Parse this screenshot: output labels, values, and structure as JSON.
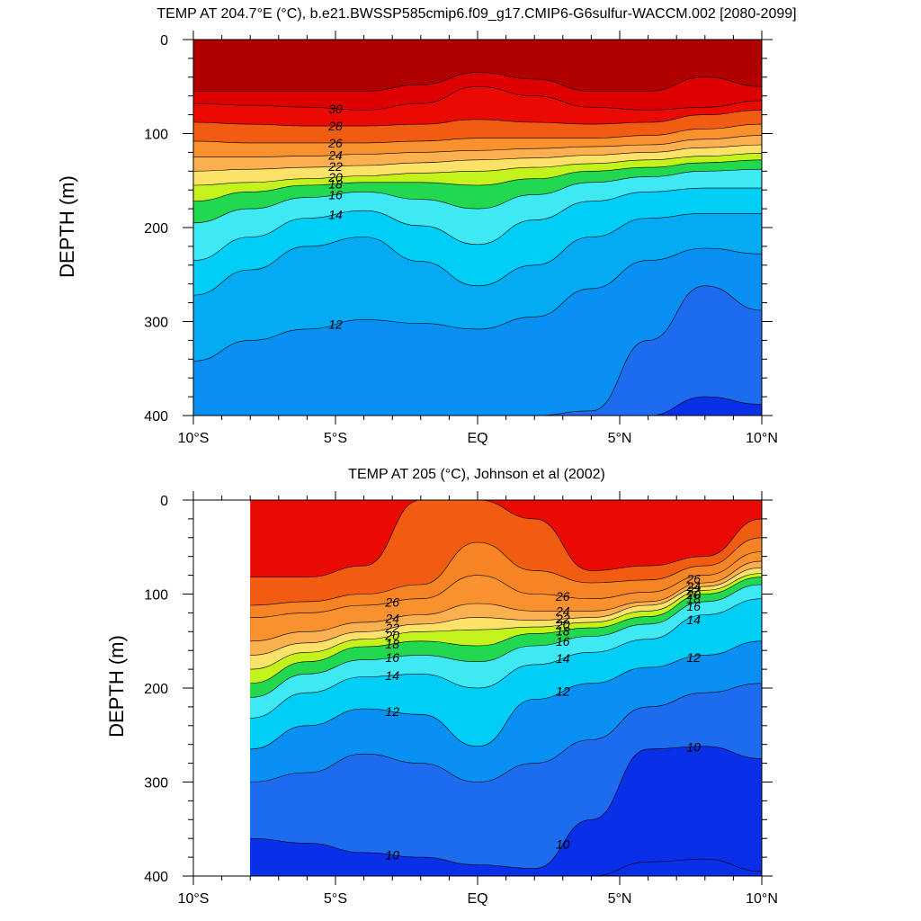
{
  "chart_data": [
    {
      "type": "heatmap",
      "subtype": "filled-contour",
      "title": "TEMP AT 204.7°E (°C), b.e21.BWSSP585cmip6.f09_g17.CMIP6-G6sulfur-WACCM.002 [2080-2099]",
      "xlabel": "",
      "ylabel": "DEPTH (m)",
      "xlim": [
        -10,
        10
      ],
      "ylim": [
        400,
        0
      ],
      "x_tick_labels": [
        "10°S",
        "5°S",
        "EQ",
        "5°N",
        "10°N"
      ],
      "y_tick_labels": [
        "0",
        "100",
        "200",
        "300",
        "400"
      ],
      "x_ticks": [
        -10,
        -5,
        0,
        5,
        10
      ],
      "y_ticks": [
        0,
        100,
        200,
        300,
        400
      ],
      "contour_interval": 1,
      "data_extent_x": [
        -10,
        10
      ],
      "isotherm_depths": {
        "x": [
          -10,
          -8,
          -6,
          -4,
          -2,
          0,
          2,
          4,
          6,
          8,
          10
        ],
        "levels": [
          {
            "t": 31,
            "d": [
              55,
              55,
              55,
              55,
              48,
              35,
              42,
              55,
              55,
              40,
              50
            ]
          },
          {
            "t": 30,
            "d": [
              68,
              70,
              72,
              75,
              68,
              50,
              60,
              72,
              75,
              72,
              65
            ]
          },
          {
            "t": 28,
            "d": [
              88,
              90,
              92,
              92,
              90,
              85,
              88,
              90,
              88,
              80,
              75
            ]
          },
          {
            "t": 26,
            "d": [
              108,
              110,
              110,
              110,
              108,
              105,
              105,
              105,
              102,
              95,
              90
            ]
          },
          {
            "t": 24,
            "d": [
              125,
              125,
              124,
              122,
              120,
              118,
              116,
              114,
              112,
              106,
              102
            ]
          },
          {
            "t": 22,
            "d": [
              140,
              138,
              136,
              134,
              131,
              128,
              126,
              123,
              120,
              115,
              112
            ]
          },
          {
            "t": 20,
            "d": [
              155,
              152,
              148,
              145,
              142,
              140,
              136,
              132,
              128,
              124,
              121
            ]
          },
          {
            "t": 18,
            "d": [
              172,
              162,
              155,
              152,
              152,
              155,
              148,
              140,
              136,
              131,
              128
            ]
          },
          {
            "t": 16,
            "d": [
              195,
              180,
              168,
              162,
              170,
              180,
              165,
              152,
              146,
              140,
              138
            ]
          },
          {
            "t": 14,
            "d": [
              235,
              210,
              190,
              182,
              198,
              218,
              192,
              172,
              162,
              158,
              158
            ]
          },
          {
            "t": 13,
            "d": [
              272,
              245,
              220,
              210,
              236,
              262,
              240,
              210,
              190,
              185,
              185
            ]
          },
          {
            "t": 12,
            "d": [
              342,
              320,
              308,
              298,
              302,
              308,
              295,
              265,
              235,
              222,
              228
            ]
          },
          {
            "t": 11,
            "d": [
              400,
              400,
              400,
              400,
              400,
              400,
              400,
              395,
              320,
              262,
              288
            ]
          },
          {
            "t": 10,
            "d": [
              400,
              400,
              400,
              400,
              400,
              400,
              400,
              400,
              400,
              380,
              388
            ]
          }
        ]
      },
      "contour_labels": [
        "30",
        "28",
        "26",
        "24",
        "22",
        "20",
        "18",
        "16",
        "14",
        "12"
      ]
    },
    {
      "type": "heatmap",
      "subtype": "filled-contour",
      "title": "TEMP AT 205 (°C), Johnson et al (2002)",
      "xlabel": "",
      "ylabel": "DEPTH (m)",
      "xlim": [
        -10,
        10
      ],
      "ylim": [
        400,
        0
      ],
      "x_tick_labels": [
        "10°S",
        "5°S",
        "EQ",
        "5°N",
        "10°N"
      ],
      "y_tick_labels": [
        "0",
        "100",
        "200",
        "300",
        "400"
      ],
      "x_ticks": [
        -10,
        -5,
        0,
        5,
        10
      ],
      "y_ticks": [
        0,
        100,
        200,
        300,
        400
      ],
      "contour_interval": 1,
      "data_extent_x": [
        -8,
        10
      ],
      "isotherm_depths": {
        "x": [
          -8,
          -6,
          -4,
          -2,
          0,
          2,
          4,
          6,
          8,
          10
        ],
        "levels": [
          {
            "t": 28,
            "d": [
              82,
              82,
              70,
              0,
              0,
              20,
              75,
              70,
              60,
              20
            ]
          },
          {
            "t": 27,
            "d": [
              112,
              108,
              100,
              90,
              45,
              75,
              88,
              85,
              70,
              40
            ]
          },
          {
            "t": 26,
            "d": [
              125,
              120,
              112,
              105,
              80,
              100,
              105,
              98,
              80,
              55
            ]
          },
          {
            "t": 24,
            "d": [
              150,
              140,
              130,
              122,
              110,
              118,
              118,
              108,
              88,
              65
            ]
          },
          {
            "t": 22,
            "d": [
              165,
              152,
              140,
              132,
              125,
              128,
              125,
              112,
              92,
              72
            ]
          },
          {
            "t": 20,
            "d": [
              180,
              162,
              148,
              140,
              138,
              135,
              130,
              118,
              96,
              78
            ]
          },
          {
            "t": 18,
            "d": [
              195,
              172,
              156,
              150,
              155,
              142,
              136,
              124,
              100,
              82
            ]
          },
          {
            "t": 16,
            "d": [
              210,
              185,
              170,
              165,
              172,
              155,
              145,
              132,
              108,
              90
            ]
          },
          {
            "t": 14,
            "d": [
              232,
              205,
              188,
              185,
              200,
              175,
              162,
              148,
              122,
              105
            ]
          },
          {
            "t": 12,
            "d": [
              265,
              240,
              222,
              228,
              262,
              212,
              195,
              178,
              165,
              150
            ]
          },
          {
            "t": 11,
            "d": [
              300,
              290,
              270,
              280,
              300,
              280,
              255,
              220,
              205,
              195
            ]
          },
          {
            "t": 10,
            "d": [
              360,
              365,
              375,
              380,
              388,
              392,
              340,
              265,
              262,
              275
            ]
          },
          {
            "t": 9,
            "d": [
              400,
              400,
              400,
              400,
              400,
              400,
              400,
              385,
              382,
              395
            ]
          }
        ]
      },
      "contour_labels": [
        "26",
        "24",
        "22",
        "20",
        "18",
        "16",
        "14",
        "12",
        "10",
        "26",
        "24",
        "22",
        "20",
        "19",
        "16",
        "14",
        "12",
        "10",
        "26",
        "24",
        "22",
        "20",
        "18",
        "16",
        "14",
        "12",
        "10"
      ]
    }
  ]
}
